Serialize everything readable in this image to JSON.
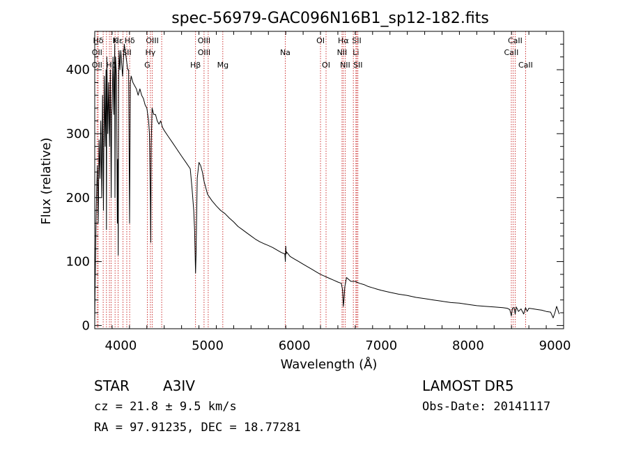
{
  "chart_data": {
    "type": "line",
    "title": "spec-56979-GAC096N16B1_sp12-182.fits",
    "xlabel": "Wavelength (Å)",
    "ylabel": "Flux (relative)",
    "xlim": [
      3700,
      9100
    ],
    "ylim": [
      -5,
      460
    ],
    "xticks": [
      4000,
      5000,
      6000,
      7000,
      8000,
      9000
    ],
    "yticks": [
      0,
      100,
      200,
      300,
      400
    ],
    "x_minor_step": 200,
    "y_minor_step": 20,
    "grid": false,
    "line_color": "#000000",
    "marker_color": "#c00000",
    "series": [
      {
        "x": [
          3700,
          3705,
          3712,
          3720,
          3730,
          3740,
          3750,
          3760,
          3770,
          3780,
          3790,
          3800,
          3810,
          3820,
          3830,
          3835,
          3840,
          3850,
          3860,
          3870,
          3880,
          3889,
          3895,
          3900,
          3910,
          3920,
          3930,
          3933,
          3940,
          3950,
          3960,
          3965,
          3970,
          3975,
          3980,
          3990,
          4000,
          4010,
          4020,
          4040,
          4060,
          4080,
          4090,
          4101,
          4110,
          4120,
          4140,
          4160,
          4180,
          4200,
          4220,
          4240,
          4260,
          4280,
          4300,
          4320,
          4330,
          4340,
          4345,
          4350,
          4360,
          4380,
          4400,
          4420,
          4440,
          4460,
          4480,
          4500,
          4550,
          4600,
          4650,
          4700,
          4750,
          4800,
          4820,
          4840,
          4850,
          4855,
          4861,
          4867,
          4872,
          4880,
          4900,
          4920,
          4940,
          4960,
          4980,
          5000,
          5050,
          5100,
          5150,
          5200,
          5250,
          5300,
          5350,
          5400,
          5450,
          5500,
          5550,
          5600,
          5650,
          5700,
          5750,
          5800,
          5850,
          5890,
          5895,
          5900,
          5905,
          5910,
          5950,
          6000,
          6050,
          6100,
          6150,
          6200,
          6250,
          6300,
          6350,
          6400,
          6450,
          6500,
          6540,
          6555,
          6563,
          6570,
          6580,
          6600,
          6650,
          6700,
          6750,
          6800,
          6850,
          6900,
          6950,
          7000,
          7100,
          7200,
          7300,
          7400,
          7500,
          7600,
          7700,
          7800,
          7900,
          8000,
          8100,
          8200,
          8300,
          8400,
          8450,
          8480,
          8498,
          8510,
          8530,
          8542,
          8555,
          8580,
          8610,
          8640,
          8662,
          8680,
          8700,
          8750,
          8800,
          8850,
          8900,
          8950,
          8980,
          9000,
          9020,
          9050
        ],
        "y": [
          5,
          70,
          140,
          200,
          250,
          160,
          290,
          230,
          320,
          200,
          360,
          180,
          390,
          280,
          400,
          150,
          420,
          300,
          380,
          280,
          400,
          200,
          330,
          340,
          420,
          330,
          440,
          200,
          420,
          390,
          160,
          260,
          110,
          370,
          430,
          400,
          430,
          410,
          390,
          440,
          420,
          400,
          400,
          160,
          380,
          390,
          380,
          375,
          370,
          360,
          370,
          360,
          355,
          345,
          340,
          320,
          300,
          200,
          130,
          280,
          340,
          330,
          330,
          320,
          315,
          320,
          310,
          305,
          295,
          285,
          275,
          265,
          255,
          245,
          215,
          180,
          150,
          120,
          82,
          110,
          160,
          230,
          255,
          250,
          240,
          225,
          215,
          205,
          195,
          187,
          180,
          175,
          168,
          162,
          155,
          150,
          145,
          140,
          135,
          131,
          128,
          125,
          122,
          118,
          114,
          112,
          100,
          124,
          112,
          115,
          108,
          104,
          100,
          96,
          92,
          88,
          84,
          80,
          77,
          74,
          71,
          68,
          66,
          55,
          30,
          40,
          60,
          75,
          69,
          69,
          66,
          64,
          61,
          59,
          57,
          55,
          52,
          49,
          47,
          44,
          42,
          40,
          38,
          36,
          35,
          33,
          31,
          30,
          29,
          28,
          27,
          25,
          15,
          27,
          28,
          18,
          29,
          22,
          26,
          18,
          28,
          22,
          27,
          26,
          25,
          24,
          22,
          21,
          12,
          20,
          30,
          18
        ]
      }
    ],
    "line_markers": [
      {
        "label": "Hδ",
        "x": 3740,
        "row": 1
      },
      {
        "label": "OII",
        "x": 3727,
        "row": 2
      },
      {
        "label": "OII",
        "x": 3727,
        "row": 3
      },
      {
        "label": "K",
        "x": 3934,
        "row": 1
      },
      {
        "label": "Hε",
        "x": 3970,
        "row": 1
      },
      {
        "label": "Hζ",
        "x": 3889,
        "row": 3
      },
      {
        "label": "Hδ",
        "x": 4102,
        "row": 1
      },
      {
        "label": "SII",
        "x": 4069,
        "row": 2
      },
      {
        "label": "OIII",
        "x": 4363,
        "row": 1
      },
      {
        "label": "Hγ",
        "x": 4341,
        "row": 2
      },
      {
        "label": "G",
        "x": 4305,
        "row": 3
      },
      {
        "label": "OIII",
        "x": 4959,
        "row": 1
      },
      {
        "label": "OIII",
        "x": 4959,
        "row": 2
      },
      {
        "label": "Hβ",
        "x": 4861,
        "row": 3
      },
      {
        "label": "Mg",
        "x": 5175,
        "row": 3
      },
      {
        "label": "Na",
        "x": 5894,
        "row": 2
      },
      {
        "label": "OI",
        "x": 6300,
        "row": 1
      },
      {
        "label": "OI",
        "x": 6364,
        "row": 3
      },
      {
        "label": "Hα",
        "x": 6563,
        "row": 1
      },
      {
        "label": "NII",
        "x": 6548,
        "row": 2
      },
      {
        "label": "NII",
        "x": 6584,
        "row": 3
      },
      {
        "label": "SII",
        "x": 6717,
        "row": 1
      },
      {
        "label": "Li",
        "x": 6708,
        "row": 2
      },
      {
        "label": "SII",
        "x": 6731,
        "row": 3
      },
      {
        "label": "CaII",
        "x": 8542,
        "row": 1
      },
      {
        "label": "CaII",
        "x": 8498,
        "row": 2
      },
      {
        "label": "CaII",
        "x": 8662,
        "row": 3
      }
    ],
    "extra_marker_lines": [
      3797,
      3835,
      3869,
      3889,
      4026,
      4471,
      5007,
      6678,
      8498,
      8520
    ]
  },
  "info": {
    "object_class": "STAR",
    "subclass": "A3IV",
    "survey": "LAMOST DR5",
    "redshift_line": "cz = 21.8 ± 9.5 km/s",
    "obs_date_line": "Obs-Date: 20141117",
    "coords_line": "RA =  97.91235, DEC =  18.77281"
  }
}
